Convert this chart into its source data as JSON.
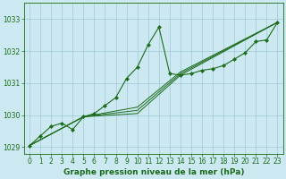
{
  "title": "Graphe pression niveau de la mer (hPa)",
  "bg_color": "#cce8f0",
  "grid_color": "#9fc8d8",
  "line_color": "#1a6b1a",
  "marker_color": "#1a6b1a",
  "xlim": [
    -0.5,
    23.5
  ],
  "ylim": [
    1028.8,
    1033.5
  ],
  "yticks": [
    1029,
    1030,
    1031,
    1032,
    1033
  ],
  "xticks": [
    0,
    1,
    2,
    3,
    4,
    5,
    6,
    7,
    8,
    9,
    10,
    11,
    12,
    13,
    14,
    15,
    16,
    17,
    18,
    19,
    20,
    21,
    22,
    23
  ],
  "series1_x": [
    0,
    1,
    2,
    3,
    4,
    5,
    6,
    7,
    8,
    9,
    10,
    11,
    12,
    13,
    14,
    15,
    16,
    17,
    18,
    19,
    20,
    21,
    22,
    23
  ],
  "series1_y": [
    1029.05,
    1029.35,
    1029.65,
    1029.75,
    1029.55,
    1029.95,
    1030.05,
    1030.3,
    1030.55,
    1031.15,
    1031.5,
    1032.2,
    1032.75,
    1031.3,
    1031.25,
    1031.3,
    1031.4,
    1031.45,
    1031.55,
    1031.75,
    1031.95,
    1032.3,
    1032.35,
    1032.9
  ],
  "series2_x": [
    0,
    5,
    10,
    14,
    23
  ],
  "series2_y": [
    1029.05,
    1029.95,
    1030.05,
    1031.25,
    1032.9
  ],
  "series3_x": [
    0,
    5,
    10,
    14,
    23
  ],
  "series3_y": [
    1029.05,
    1029.95,
    1030.15,
    1031.3,
    1032.9
  ],
  "series4_x": [
    0,
    5,
    10,
    14,
    23
  ],
  "series4_y": [
    1029.05,
    1029.95,
    1030.25,
    1031.35,
    1032.9
  ],
  "tick_fontsize": 5.5,
  "label_fontsize": 6.5
}
